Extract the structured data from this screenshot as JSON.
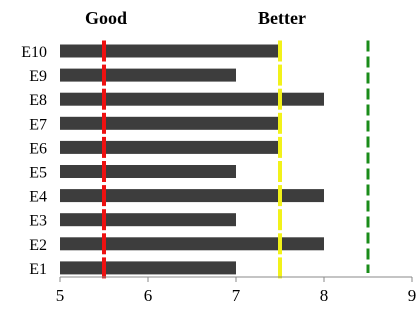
{
  "chart_data": {
    "type": "bar",
    "orientation": "horizontal",
    "categories": [
      "E10",
      "E9",
      "E8",
      "E7",
      "E6",
      "E5",
      "E4",
      "E3",
      "E2",
      "E1"
    ],
    "values": [
      7.5,
      7,
      8,
      7.5,
      7.5,
      7,
      8,
      7,
      8,
      7
    ],
    "xlim": [
      5,
      9
    ],
    "xticks": [
      "5",
      "6",
      "7",
      "8",
      "9"
    ],
    "grid": false,
    "reference_lines": [
      {
        "label": "Good",
        "value": 5.5,
        "color": "#ee1111",
        "style": "segmented"
      },
      {
        "label": "Better",
        "value": 7.5,
        "color": "#f2f21a",
        "style": "segmented"
      },
      {
        "label": "",
        "value": 8.5,
        "color": "#1a8c1a",
        "style": "dashed"
      }
    ],
    "bar_color": "#3d3d3d"
  }
}
